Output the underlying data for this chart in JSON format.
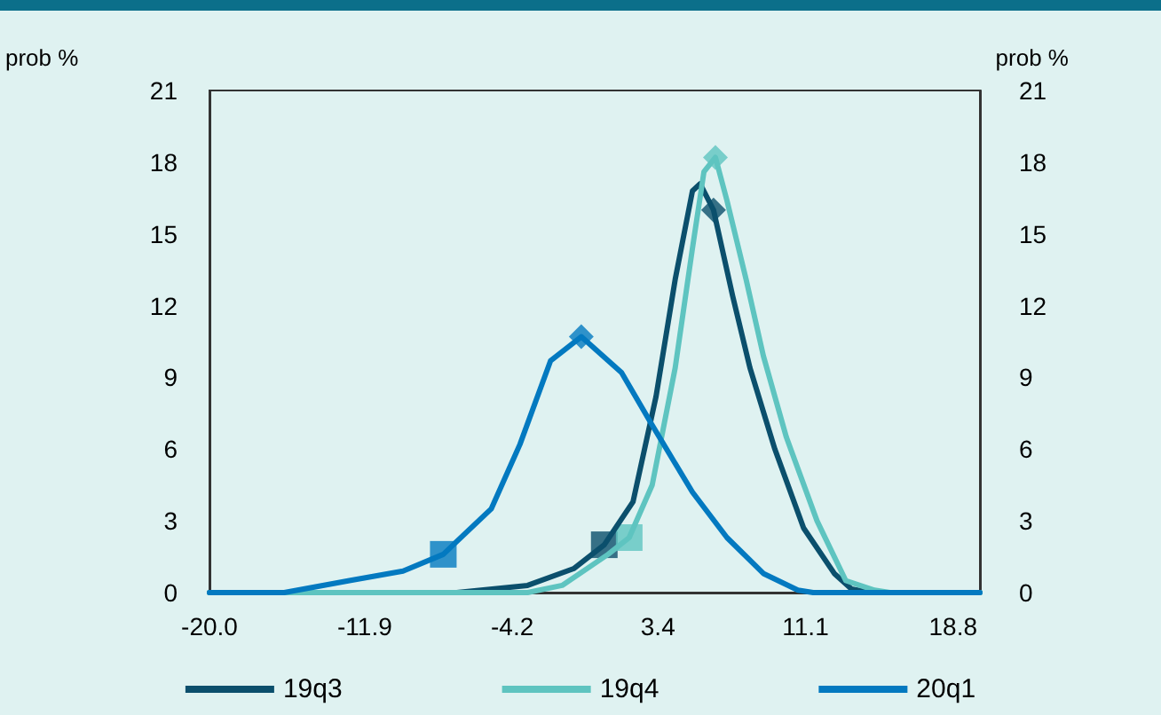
{
  "chart_data": {
    "type": "line",
    "ylabel": "prob %",
    "y2label": "prob %",
    "xlim": [
      -20,
      20.2
    ],
    "xticks": [
      {
        "value": -20,
        "label": "-20.0"
      },
      -11.9,
      -4.2,
      3.4,
      11.1,
      18.8
    ],
    "ylim": [
      0,
      21
    ],
    "yticks": [
      0,
      3,
      6,
      9,
      12,
      15,
      18,
      21
    ],
    "y2lim": [
      0,
      21
    ],
    "y2ticks": [
      0,
      3,
      6,
      9,
      12,
      15,
      18,
      21
    ],
    "grid": false,
    "legend": "bottom",
    "marker": "none",
    "line_style": "solid",
    "series": [
      {
        "name": "19q3",
        "color": "#0b4f6c",
        "x": [
          -20,
          -7.1,
          -3.4,
          -1.0,
          0.6,
          2.1,
          3.3,
          4.3,
          5.2,
          5.6,
          6.3,
          7.3,
          8.2,
          9.5,
          11.0,
          12.6,
          13.5,
          14.5,
          20.2
        ],
        "values": [
          0,
          0,
          0.3,
          1.0,
          2.0,
          3.8,
          8.2,
          13.1,
          16.8,
          17.1,
          16.0,
          12.4,
          9.4,
          6.0,
          2.7,
          0.8,
          0.15,
          0,
          0
        ]
      },
      {
        "name": "19q4",
        "color": "#5ec4c0",
        "x": [
          -20,
          -3.4,
          -1.6,
          0.8,
          1.9,
          3.1,
          4.3,
          5.2,
          5.8,
          6.4,
          7.0,
          8.0,
          8.9,
          10.1,
          11.7,
          13.2,
          14.7,
          15.5,
          20.2
        ],
        "values": [
          0,
          0,
          0.3,
          1.6,
          2.3,
          4.5,
          9.4,
          14.4,
          17.6,
          18.2,
          16.4,
          13.1,
          9.9,
          6.5,
          3.0,
          0.5,
          0.1,
          0,
          0
        ]
      },
      {
        "name": "20q1",
        "color": "#0379c0",
        "x": [
          -20,
          -16.1,
          -12.7,
          -9.9,
          -7.8,
          -5.3,
          -3.8,
          -2.2,
          -0.6,
          1.5,
          3.1,
          5.2,
          7.0,
          8.9,
          10.7,
          11.5,
          20.2
        ],
        "values": [
          0,
          0,
          0.5,
          0.9,
          1.6,
          3.5,
          6.2,
          9.7,
          10.7,
          9.2,
          7.0,
          4.2,
          2.3,
          0.8,
          0.1,
          0,
          0
        ]
      },
      {
        "type": "scatter",
        "marker": "diamond",
        "x": [
          6.3,
          6.4,
          -0.6
        ],
        "values": [
          16.0,
          18.2,
          10.7
        ],
        "colors": [
          "#0b4f6c",
          "#5ec4c0",
          "#0379c0"
        ]
      },
      {
        "type": "scatter",
        "marker": "square",
        "x": [
          0.6,
          1.9,
          -7.8
        ],
        "values": [
          2.0,
          2.3,
          1.6
        ],
        "colors": [
          "#0b4f6c",
          "#5ec4c0",
          "#0379c0"
        ]
      }
    ]
  }
}
